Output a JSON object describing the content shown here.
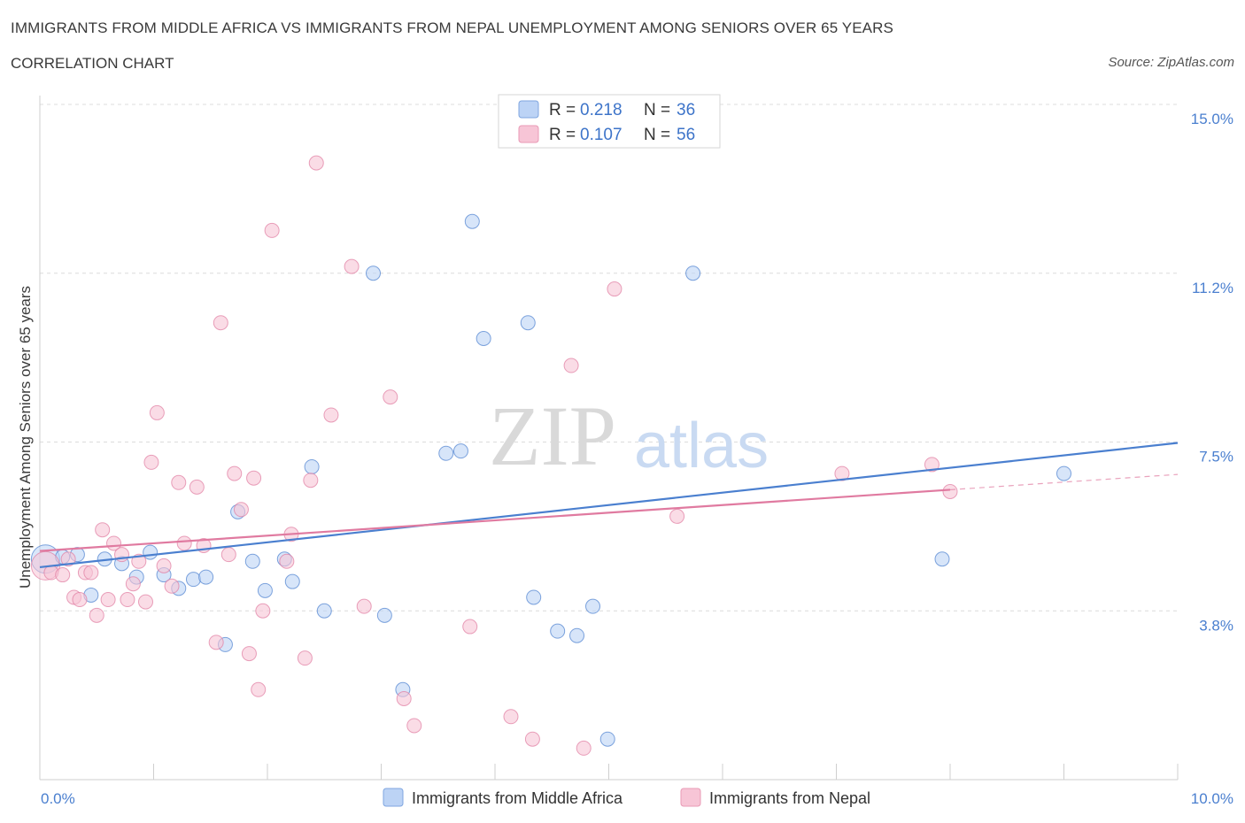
{
  "header": {
    "title": "IMMIGRANTS FROM MIDDLE AFRICA VS IMMIGRANTS FROM NEPAL UNEMPLOYMENT AMONG SENIORS OVER 65 YEARS",
    "subtitle": "CORRELATION CHART",
    "source": "Source: ZipAtlas.com"
  },
  "watermark": {
    "zip": "ZIP",
    "atlas": "atlas"
  },
  "legend": {
    "r_label": "R =",
    "n_label": "N =",
    "entries": [
      {
        "r": "0.218",
        "n": "36",
        "color": "#4a7fcf"
      },
      {
        "r": "0.107",
        "n": "56",
        "color": "#e07aa0"
      }
    ]
  },
  "chart_data": {
    "type": "scatter",
    "title": "IMMIGRANTS FROM MIDDLE AFRICA VS IMMIGRANTS FROM NEPAL UNEMPLOYMENT AMONG SENIORS OVER 65 YEARS",
    "ylabel": "Unemployment Among Seniors over 65 years",
    "xlim": [
      0,
      10
    ],
    "ylim": [
      0,
      15
    ],
    "x_tick_labels": [
      "0.0%",
      "10.0%"
    ],
    "y_ticks": [
      {
        "value": 3.75,
        "label": "3.8%"
      },
      {
        "value": 7.5,
        "label": "7.5%"
      },
      {
        "value": 11.25,
        "label": "11.2%"
      },
      {
        "value": 15.0,
        "label": "15.0%"
      }
    ],
    "grid": true,
    "legend_position": "top-center",
    "series": [
      {
        "name": "Immigrants from Middle Africa",
        "color": "#4a7fcf",
        "fill": "#bcd3f5",
        "trend": {
          "x0": 0.0,
          "y0": 4.72,
          "x1": 10.0,
          "y1": 7.48,
          "dashed_from": null
        },
        "points": [
          {
            "x": 0.05,
            "y": 4.9,
            "big": true
          },
          {
            "x": 0.2,
            "y": 4.95
          },
          {
            "x": 0.33,
            "y": 5.0
          },
          {
            "x": 0.45,
            "y": 4.1
          },
          {
            "x": 0.57,
            "y": 4.9
          },
          {
            "x": 0.72,
            "y": 4.8
          },
          {
            "x": 0.85,
            "y": 4.5
          },
          {
            "x": 0.97,
            "y": 5.05
          },
          {
            "x": 1.09,
            "y": 4.55
          },
          {
            "x": 1.22,
            "y": 4.25
          },
          {
            "x": 1.35,
            "y": 4.45
          },
          {
            "x": 1.46,
            "y": 4.5
          },
          {
            "x": 1.63,
            "y": 3.0
          },
          {
            "x": 1.74,
            "y": 5.95
          },
          {
            "x": 1.87,
            "y": 4.85
          },
          {
            "x": 1.98,
            "y": 4.2
          },
          {
            "x": 2.15,
            "y": 4.9
          },
          {
            "x": 2.22,
            "y": 4.4
          },
          {
            "x": 2.39,
            "y": 6.95
          },
          {
            "x": 2.5,
            "y": 3.75
          },
          {
            "x": 2.93,
            "y": 11.25
          },
          {
            "x": 3.03,
            "y": 3.65
          },
          {
            "x": 3.19,
            "y": 2.0
          },
          {
            "x": 3.57,
            "y": 7.25
          },
          {
            "x": 3.7,
            "y": 7.3
          },
          {
            "x": 3.8,
            "y": 12.4
          },
          {
            "x": 3.9,
            "y": 9.8
          },
          {
            "x": 4.29,
            "y": 10.15
          },
          {
            "x": 4.34,
            "y": 4.05
          },
          {
            "x": 4.55,
            "y": 3.3
          },
          {
            "x": 4.72,
            "y": 3.2
          },
          {
            "x": 4.86,
            "y": 3.85
          },
          {
            "x": 4.99,
            "y": 0.9
          },
          {
            "x": 5.74,
            "y": 11.25
          },
          {
            "x": 7.93,
            "y": 4.9
          },
          {
            "x": 9.0,
            "y": 6.8
          }
        ]
      },
      {
        "name": "Immigrants from Nepal",
        "color": "#e07aa0",
        "fill": "#f7c5d6",
        "trend": {
          "x0": 0.0,
          "y0": 5.08,
          "x1": 10.0,
          "y1": 6.78,
          "dashed_from": 8.0
        },
        "points": [
          {
            "x": 0.05,
            "y": 4.75,
            "big": true
          },
          {
            "x": 0.1,
            "y": 4.6
          },
          {
            "x": 0.2,
            "y": 4.55
          },
          {
            "x": 0.25,
            "y": 4.9
          },
          {
            "x": 0.3,
            "y": 4.05
          },
          {
            "x": 0.35,
            "y": 4.0
          },
          {
            "x": 0.4,
            "y": 4.6
          },
          {
            "x": 0.45,
            "y": 4.6
          },
          {
            "x": 0.5,
            "y": 3.65
          },
          {
            "x": 0.55,
            "y": 5.55
          },
          {
            "x": 0.6,
            "y": 4.0
          },
          {
            "x": 0.65,
            "y": 5.25
          },
          {
            "x": 0.72,
            "y": 5.0
          },
          {
            "x": 0.77,
            "y": 4.0
          },
          {
            "x": 0.82,
            "y": 4.35
          },
          {
            "x": 0.87,
            "y": 4.85
          },
          {
            "x": 0.93,
            "y": 3.95
          },
          {
            "x": 0.98,
            "y": 7.05
          },
          {
            "x": 1.03,
            "y": 8.15
          },
          {
            "x": 1.09,
            "y": 4.75
          },
          {
            "x": 1.16,
            "y": 4.3
          },
          {
            "x": 1.22,
            "y": 6.6
          },
          {
            "x": 1.27,
            "y": 5.25
          },
          {
            "x": 1.38,
            "y": 6.5
          },
          {
            "x": 1.44,
            "y": 5.2
          },
          {
            "x": 1.55,
            "y": 3.05
          },
          {
            "x": 1.59,
            "y": 10.15
          },
          {
            "x": 1.66,
            "y": 5.0
          },
          {
            "x": 1.71,
            "y": 6.8
          },
          {
            "x": 1.77,
            "y": 6.0
          },
          {
            "x": 1.84,
            "y": 2.8
          },
          {
            "x": 1.88,
            "y": 6.7
          },
          {
            "x": 1.92,
            "y": 2.0
          },
          {
            "x": 1.96,
            "y": 3.75
          },
          {
            "x": 2.04,
            "y": 12.2
          },
          {
            "x": 2.17,
            "y": 4.85
          },
          {
            "x": 2.21,
            "y": 5.45
          },
          {
            "x": 2.33,
            "y": 2.7
          },
          {
            "x": 2.38,
            "y": 6.65
          },
          {
            "x": 2.43,
            "y": 13.7
          },
          {
            "x": 2.56,
            "y": 8.1
          },
          {
            "x": 2.74,
            "y": 11.4
          },
          {
            "x": 2.85,
            "y": 3.85
          },
          {
            "x": 3.08,
            "y": 8.5
          },
          {
            "x": 3.2,
            "y": 1.8
          },
          {
            "x": 3.29,
            "y": 1.2
          },
          {
            "x": 3.78,
            "y": 3.4
          },
          {
            "x": 4.14,
            "y": 1.4
          },
          {
            "x": 4.33,
            "y": 0.9
          },
          {
            "x": 4.67,
            "y": 9.2
          },
          {
            "x": 4.78,
            "y": 0.7
          },
          {
            "x": 5.05,
            "y": 10.9
          },
          {
            "x": 5.6,
            "y": 5.85
          },
          {
            "x": 7.05,
            "y": 6.8
          },
          {
            "x": 7.84,
            "y": 7.0
          },
          {
            "x": 8.0,
            "y": 6.4
          }
        ]
      }
    ]
  }
}
